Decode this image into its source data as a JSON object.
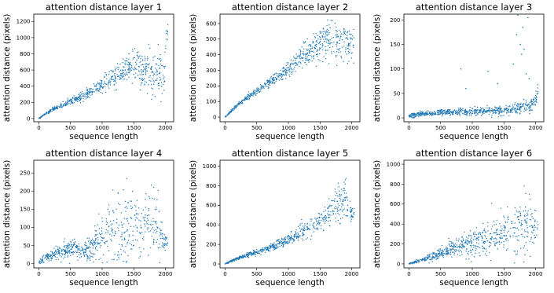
{
  "figure": {
    "marker_color": "#1f77b4"
  },
  "chart_data": [
    {
      "type": "scatter",
      "title": "attention distance layer 1",
      "xlabel": "sequence length",
      "ylabel": "attention distance (pixels)",
      "xlim": [
        -80,
        2130
      ],
      "ylim": [
        -40,
        1290
      ],
      "xticks": [
        0,
        500,
        1000,
        1500,
        2000
      ],
      "yticks": [
        0,
        200,
        400,
        600,
        800,
        1000,
        1200
      ],
      "grid": false,
      "points": [
        [
          0,
          0
        ],
        [
          100,
          55
        ],
        [
          200,
          100
        ],
        [
          300,
          140
        ],
        [
          400,
          175
        ],
        [
          500,
          210
        ],
        [
          600,
          240
        ],
        [
          700,
          280
        ],
        [
          800,
          320
        ],
        [
          900,
          360
        ],
        [
          1000,
          420
        ],
        [
          1100,
          470
        ],
        [
          1200,
          520
        ],
        [
          1300,
          580
        ],
        [
          1400,
          630
        ],
        [
          1500,
          660
        ],
        [
          1600,
          620
        ],
        [
          1700,
          590
        ],
        [
          1800,
          560
        ],
        [
          1900,
          540
        ],
        [
          1980,
          540
        ],
        [
          2000,
          860
        ],
        [
          2020,
          1060
        ],
        [
          2040,
          1100
        ]
      ],
      "spread": [
        2,
        6,
        10,
        14,
        18,
        22,
        26,
        30,
        34,
        38,
        45,
        52,
        60,
        70,
        80,
        95,
        110,
        120,
        125,
        130,
        130,
        90,
        120,
        110
      ]
    },
    {
      "type": "scatter",
      "title": "attention distance layer 2",
      "xlabel": "sequence length",
      "ylabel": "attention distance (pixels)",
      "xlim": [
        -80,
        2130
      ],
      "ylim": [
        -30,
        660
      ],
      "xticks": [
        0,
        500,
        1000,
        1500,
        2000
      ],
      "yticks": [
        0,
        100,
        200,
        300,
        400,
        500,
        600
      ],
      "grid": false,
      "points": [
        [
          0,
          0
        ],
        [
          100,
          40
        ],
        [
          200,
          80
        ],
        [
          300,
          110
        ],
        [
          400,
          140
        ],
        [
          500,
          165
        ],
        [
          600,
          195
        ],
        [
          700,
          220
        ],
        [
          800,
          240
        ],
        [
          900,
          275
        ],
        [
          1000,
          310
        ],
        [
          1100,
          345
        ],
        [
          1200,
          380
        ],
        [
          1300,
          410
        ],
        [
          1400,
          440
        ],
        [
          1500,
          470
        ],
        [
          1600,
          490
        ],
        [
          1700,
          495
        ],
        [
          1800,
          490
        ],
        [
          1900,
          480
        ],
        [
          2000,
          465
        ],
        [
          2040,
          450
        ]
      ],
      "spread": [
        3,
        5,
        6,
        8,
        10,
        12,
        14,
        16,
        18,
        22,
        26,
        30,
        34,
        38,
        42,
        48,
        55,
        60,
        62,
        60,
        55,
        50
      ]
    },
    {
      "type": "scatter",
      "title": "attention distance layer 3",
      "xlabel": "sequence length",
      "ylabel": "attention distance (pixels)",
      "xlim": [
        -80,
        2130
      ],
      "ylim": [
        -8,
        212
      ],
      "xticks": [
        0,
        500,
        1000,
        1500,
        2000
      ],
      "yticks": [
        0,
        50,
        100,
        150,
        200
      ],
      "grid": false,
      "points": [
        [
          0,
          4
        ],
        [
          200,
          8
        ],
        [
          400,
          10
        ],
        [
          600,
          11
        ],
        [
          800,
          12
        ],
        [
          1000,
          13
        ],
        [
          1200,
          14
        ],
        [
          1400,
          15
        ],
        [
          1600,
          16
        ],
        [
          1700,
          19
        ],
        [
          1800,
          22
        ],
        [
          1900,
          22
        ],
        [
          2000,
          35
        ],
        [
          2040,
          50
        ]
      ],
      "spread": [
        2,
        3,
        3,
        3,
        4,
        4,
        4,
        5,
        5,
        6,
        6,
        6,
        8,
        10
      ],
      "outliers": [
        [
          820,
          100
        ],
        [
          900,
          60
        ],
        [
          1250,
          95
        ],
        [
          1400,
          70
        ],
        [
          1650,
          110
        ],
        [
          1700,
          170
        ],
        [
          1720,
          210
        ],
        [
          1760,
          150
        ],
        [
          1780,
          130
        ],
        [
          1800,
          185
        ],
        [
          1820,
          140
        ],
        [
          1850,
          90
        ],
        [
          1880,
          205
        ],
        [
          1900,
          80
        ]
      ]
    },
    {
      "type": "scatter",
      "title": "attention distance layer 4",
      "xlabel": "sequence length",
      "ylabel": "attention distance (pixels)",
      "xlim": [
        -80,
        2130
      ],
      "ylim": [
        -12,
        285
      ],
      "xticks": [
        0,
        500,
        1000,
        1500,
        2000
      ],
      "yticks": [
        0,
        50,
        100,
        150,
        200,
        250
      ],
      "grid": false,
      "points": [
        [
          0,
          5
        ],
        [
          100,
          15
        ],
        [
          200,
          25
        ],
        [
          300,
          30
        ],
        [
          400,
          35
        ],
        [
          500,
          40
        ],
        [
          600,
          38
        ],
        [
          700,
          35
        ],
        [
          800,
          45
        ],
        [
          900,
          60
        ],
        [
          1000,
          70
        ],
        [
          1100,
          75
        ],
        [
          1200,
          85
        ],
        [
          1300,
          90
        ],
        [
          1400,
          95
        ],
        [
          1500,
          100
        ],
        [
          1600,
          110
        ],
        [
          1700,
          115
        ],
        [
          1800,
          110
        ],
        [
          1900,
          95
        ],
        [
          1980,
          60
        ],
        [
          2040,
          55
        ]
      ],
      "spread": [
        3,
        6,
        8,
        10,
        12,
        12,
        12,
        12,
        18,
        25,
        30,
        35,
        40,
        45,
        50,
        55,
        55,
        55,
        50,
        40,
        15,
        10
      ]
    },
    {
      "type": "scatter",
      "title": "attention distance layer 5",
      "xlabel": "sequence length",
      "ylabel": "attention distance (pixels)",
      "xlim": [
        -80,
        2130
      ],
      "ylim": [
        -40,
        1060
      ],
      "xticks": [
        0,
        500,
        1000,
        1500,
        2000
      ],
      "yticks": [
        0,
        200,
        400,
        600,
        800,
        1000
      ],
      "grid": false,
      "points": [
        [
          0,
          0
        ],
        [
          100,
          30
        ],
        [
          200,
          55
        ],
        [
          300,
          80
        ],
        [
          400,
          100
        ],
        [
          500,
          120
        ],
        [
          600,
          140
        ],
        [
          700,
          165
        ],
        [
          800,
          190
        ],
        [
          900,
          215
        ],
        [
          1000,
          250
        ],
        [
          1100,
          280
        ],
        [
          1200,
          320
        ],
        [
          1300,
          360
        ],
        [
          1400,
          400
        ],
        [
          1500,
          440
        ],
        [
          1600,
          480
        ],
        [
          1700,
          560
        ],
        [
          1800,
          650
        ],
        [
          1900,
          650
        ],
        [
          1960,
          560
        ],
        [
          2020,
          500
        ]
      ],
      "spread": [
        3,
        6,
        8,
        10,
        12,
        14,
        16,
        18,
        20,
        24,
        28,
        32,
        36,
        40,
        45,
        50,
        60,
        80,
        110,
        100,
        60,
        30
      ]
    },
    {
      "type": "scatter",
      "title": "attention distance layer 6",
      "xlabel": "sequence length",
      "ylabel": "attention distance (pixels)",
      "xlim": [
        -80,
        2130
      ],
      "ylim": [
        -40,
        1040
      ],
      "xticks": [
        0,
        500,
        1000,
        1500,
        2000
      ],
      "yticks": [
        0,
        200,
        400,
        600,
        800,
        1000
      ],
      "grid": false,
      "points": [
        [
          0,
          0
        ],
        [
          100,
          20
        ],
        [
          200,
          40
        ],
        [
          300,
          65
        ],
        [
          400,
          85
        ],
        [
          500,
          105
        ],
        [
          600,
          125
        ],
        [
          700,
          145
        ],
        [
          800,
          165
        ],
        [
          900,
          185
        ],
        [
          1000,
          205
        ],
        [
          1100,
          225
        ],
        [
          1200,
          245
        ],
        [
          1300,
          265
        ],
        [
          1400,
          285
        ],
        [
          1500,
          305
        ],
        [
          1600,
          330
        ],
        [
          1700,
          360
        ],
        [
          1800,
          400
        ],
        [
          1900,
          420
        ],
        [
          2000,
          380
        ],
        [
          2040,
          390
        ]
      ],
      "spread": [
        3,
        8,
        12,
        18,
        24,
        30,
        36,
        42,
        50,
        58,
        66,
        74,
        82,
        90,
        98,
        106,
        116,
        130,
        150,
        160,
        80,
        50
      ]
    }
  ]
}
